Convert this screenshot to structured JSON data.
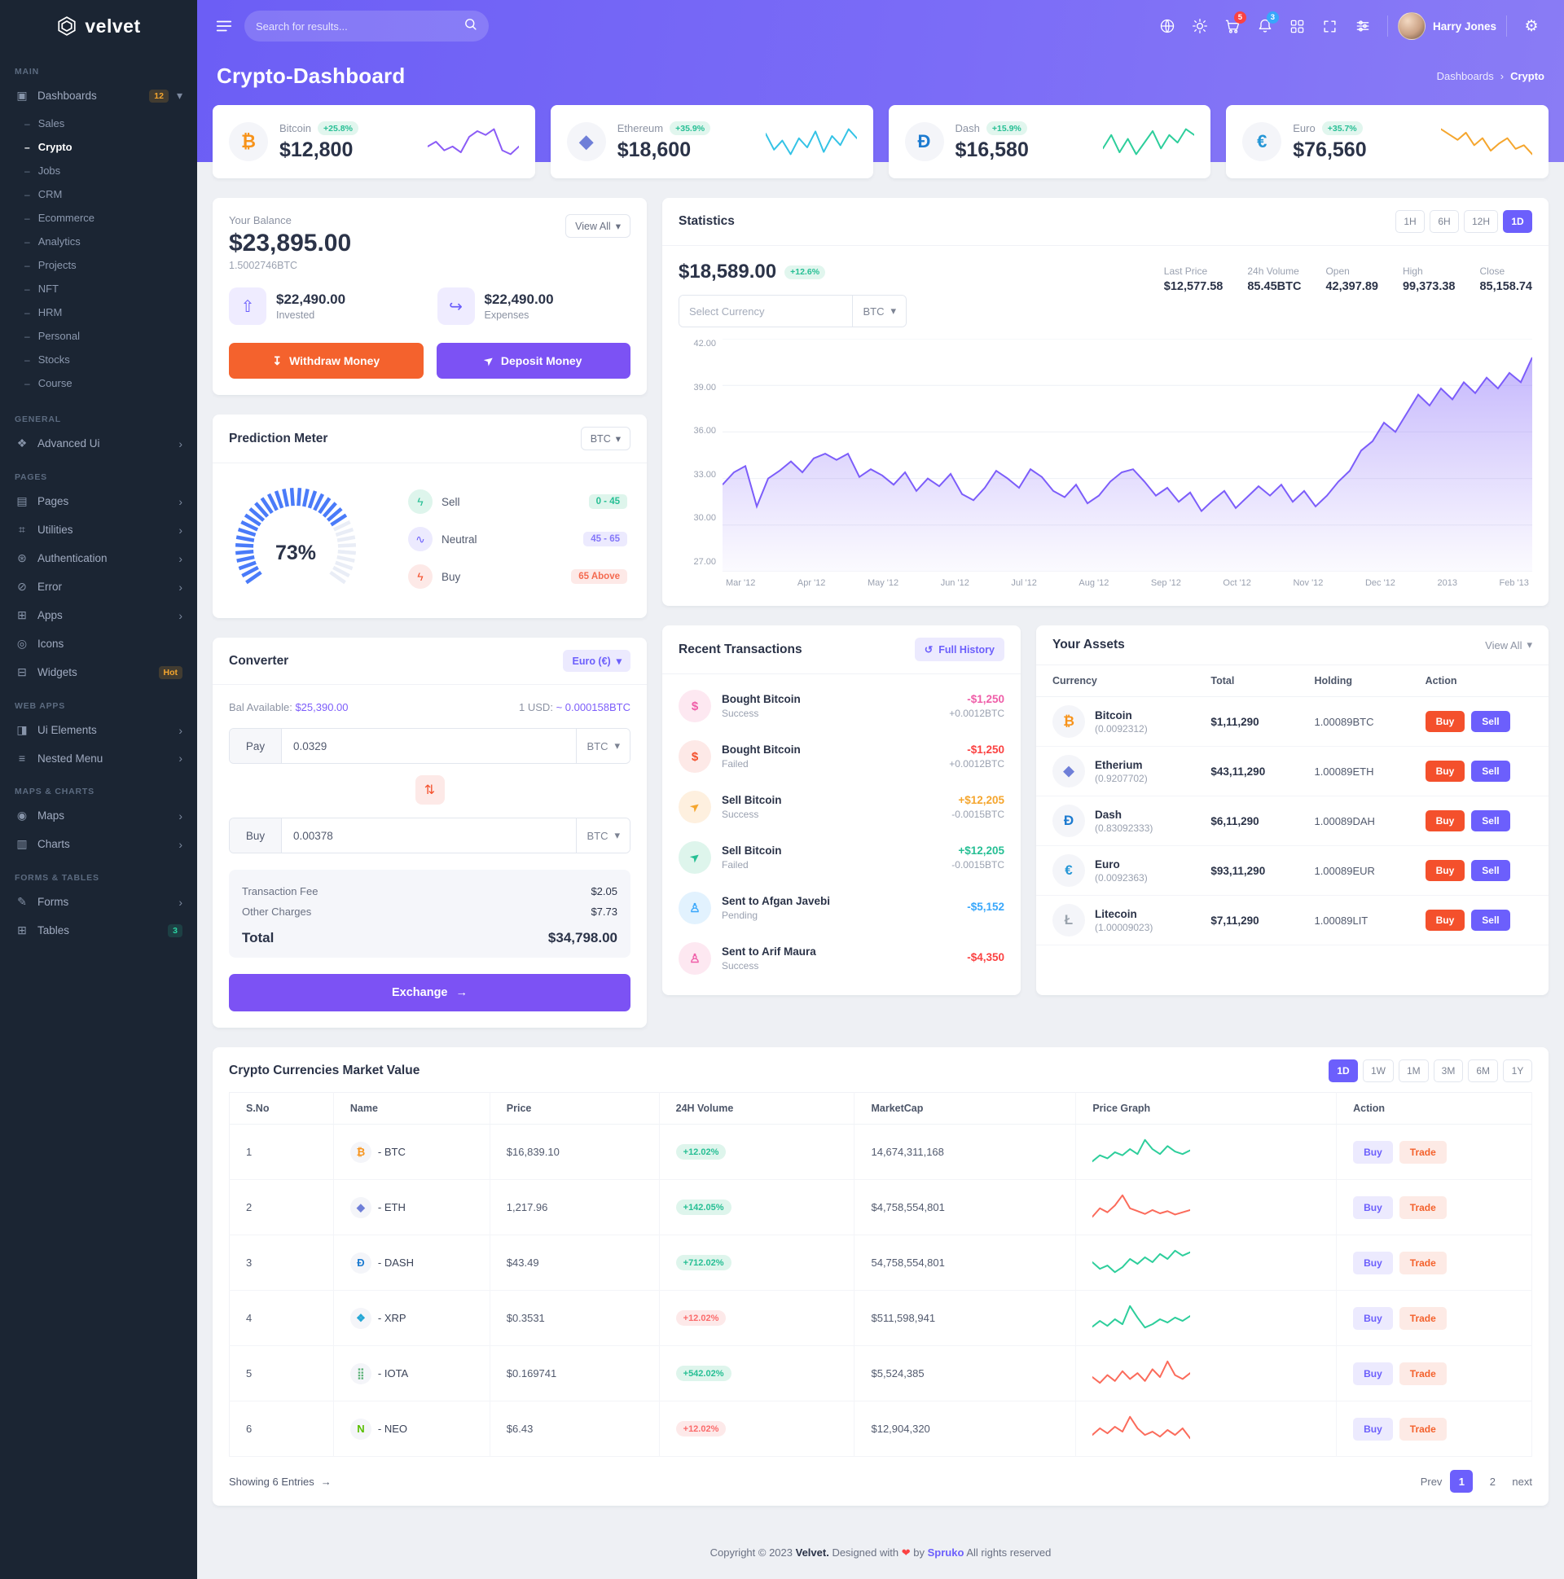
{
  "colors": {
    "primary": "#6c5ffc",
    "orange": "#f4622d",
    "buy_red": "#f4502c",
    "success": "#26bf94",
    "danger": "#fb4242",
    "warning": "#f5a62e",
    "info": "#38a7fb",
    "sidebar_bg": "#1b2533"
  },
  "brand": {
    "name": "velvet"
  },
  "topbar": {
    "search_placeholder": "Search for results...",
    "cart_badge": "5",
    "bell_badge": "3",
    "user_name": "Harry Jones",
    "gear_glyph": "⚙"
  },
  "banner": {
    "title": "Crypto-Dashboard",
    "breadcrumb_parent": "Dashboards",
    "breadcrumb_sep": "›",
    "breadcrumb_current": "Crypto"
  },
  "sidebar": {
    "main_label": "MAIN",
    "dashboards": {
      "label": "Dashboards",
      "badge": "12",
      "glyph": "▣",
      "chevron": "▾"
    },
    "dashboard_children": [
      {
        "label": "Sales",
        "active": "false"
      },
      {
        "label": "Crypto",
        "active": "true"
      },
      {
        "label": "Jobs",
        "active": "false"
      },
      {
        "label": "CRM",
        "active": "false"
      },
      {
        "label": "Ecommerce",
        "active": "false"
      },
      {
        "label": "Analytics",
        "active": "false"
      },
      {
        "label": "Projects",
        "active": "false"
      },
      {
        "label": "NFT",
        "active": "false"
      },
      {
        "label": "HRM",
        "active": "false"
      },
      {
        "label": "Personal",
        "active": "false"
      },
      {
        "label": "Stocks",
        "active": "false"
      },
      {
        "label": "Course",
        "active": "false"
      }
    ],
    "general_label": "GENERAL",
    "general_items": [
      {
        "label": "Advanced Ui",
        "glyph": "❖",
        "chevron": "›",
        "badge": ""
      }
    ],
    "pages_label": "PAGES",
    "pages_items": [
      {
        "label": "Pages",
        "glyph": "▤",
        "chevron": "›",
        "badge": ""
      },
      {
        "label": "Utilities",
        "glyph": "⌗",
        "chevron": "›",
        "badge": ""
      },
      {
        "label": "Authentication",
        "glyph": "⊛",
        "chevron": "›",
        "badge": ""
      },
      {
        "label": "Error",
        "glyph": "⊘",
        "chevron": "›",
        "badge": ""
      },
      {
        "label": "Apps",
        "glyph": "⊞",
        "chevron": "›",
        "badge": ""
      },
      {
        "label": "Icons",
        "glyph": "◎",
        "chevron": "",
        "badge": ""
      },
      {
        "label": "Widgets",
        "glyph": "⊟",
        "chevron": "",
        "badge": "Hot",
        "badge_tone": "orange"
      }
    ],
    "webapps_label": "WEB APPS",
    "webapps_items": [
      {
        "label": "Ui Elements",
        "glyph": "◨",
        "chevron": "›",
        "badge": ""
      },
      {
        "label": "Nested Menu",
        "glyph": "≡",
        "chevron": "›",
        "badge": ""
      }
    ],
    "maps_label": "MAPS & CHARTS",
    "maps_items": [
      {
        "label": "Maps",
        "glyph": "◉",
        "chevron": "›",
        "badge": ""
      },
      {
        "label": "Charts",
        "glyph": "▥",
        "chevron": "›",
        "badge": ""
      }
    ],
    "forms_label": "FORMS & TABLES",
    "forms_items": [
      {
        "label": "Forms",
        "glyph": "✎",
        "chevron": "›",
        "badge": ""
      },
      {
        "label": "Tables",
        "glyph": "⊞",
        "chevron": "",
        "badge": "3",
        "badge_tone": "green"
      }
    ]
  },
  "stat_cards": [
    {
      "name": "Bitcoin",
      "symbol": "₿",
      "symbol_style": "color:#f7931a",
      "badge": "+25.8%",
      "value": "$12,800",
      "spark_color": "#8b5cf6",
      "spark": "5,5.5,4.6,5,4.4,6,6.6,6.2,6.8,4.6,4.2,5"
    },
    {
      "name": "Ethereum",
      "symbol": "◆",
      "symbol_style": "color:#6f7fd8",
      "badge": "+35.9%",
      "value": "$18,600",
      "spark_color": "#34c3e6",
      "spark": "6,4.6,5.4,4.2,5.6,4.8,6.2,4.4,5.8,5,6.4,5.6"
    },
    {
      "name": "Dash",
      "symbol": "Đ",
      "symbol_style": "color:#1d7bd0",
      "badge": "+15.9%",
      "value": "$16,580",
      "spark_color": "#2dce9b",
      "spark": "4.6,6,4.2,5.6,4,5.2,6.4,4.6,6,5.2,6.6,6"
    },
    {
      "name": "Euro",
      "symbol": "€",
      "symbol_style": "color:#2596d6",
      "badge": "+35.7%",
      "value": "$76,560",
      "spark_color": "#f5a62e",
      "spark": "6.6,6,5.4,6.2,4.8,5.6,4.2,5,5.6,4.4,4.8,3.8"
    }
  ],
  "balance": {
    "title": "Your Balance",
    "view_all": "View All",
    "chevron": "▾",
    "amount": "$23,895.00",
    "btc": "1.5002746BTC",
    "tiles": [
      {
        "glyph": "⇧",
        "amount": "$22,490.00",
        "label": "Invested"
      },
      {
        "glyph": "↪",
        "amount": "$22,490.00",
        "label": "Expenses"
      }
    ],
    "withdraw": "Withdraw Money",
    "withdraw_glyph": "↧",
    "deposit": "Deposit Money",
    "deposit_glyph": "➤"
  },
  "statistics": {
    "title": "Statistics",
    "ranges": [
      {
        "label": "1H",
        "active": "false"
      },
      {
        "label": "6H",
        "active": "false"
      },
      {
        "label": "12H",
        "active": "false"
      },
      {
        "label": "1D",
        "active": "true"
      }
    ],
    "price": "$18,589.00",
    "change_badge": "+12.6%",
    "currency_placeholder": "Select Currency",
    "currency_select": "BTC",
    "select_arrow": "▾",
    "stats": [
      {
        "label": "Last Price",
        "value": "$12,577.58"
      },
      {
        "label": "24h Volume",
        "value": "85.45BTC"
      },
      {
        "label": "Open",
        "value": "42,397.89"
      },
      {
        "label": "High",
        "value": "99,373.38"
      },
      {
        "label": "Close",
        "value": "85,158.74"
      }
    ],
    "chart": {
      "type": "area",
      "line_color": "#7c5dfa",
      "ymin": 27,
      "ymax": 42,
      "ylabels": [
        "42.00",
        "39.00",
        "36.00",
        "33.00",
        "30.00",
        "27.00"
      ],
      "xlabels": [
        "Mar '12",
        "Apr '12",
        "May '12",
        "Jun '12",
        "Jul '12",
        "Aug '12",
        "Sep '12",
        "Oct '12",
        "Nov '12",
        "Dec '12",
        "2013",
        "Feb '13"
      ],
      "values": [
        32.6,
        33.4,
        33.8,
        31.2,
        33.0,
        33.5,
        34.1,
        33.4,
        34.3,
        34.6,
        34.2,
        34.6,
        33.1,
        33.6,
        33.2,
        32.6,
        33.4,
        32.2,
        33.0,
        32.5,
        33.3,
        32.0,
        31.6,
        32.4,
        33.5,
        33.0,
        32.4,
        33.6,
        33.1,
        32.2,
        31.8,
        32.6,
        31.4,
        31.9,
        32.8,
        33.4,
        33.6,
        32.8,
        31.9,
        32.4,
        31.5,
        32.1,
        30.9,
        31.6,
        32.2,
        31.1,
        31.8,
        32.5,
        31.9,
        32.6,
        31.5,
        32.2,
        31.2,
        31.9,
        32.8,
        33.5,
        34.8,
        35.4,
        36.6,
        36.0,
        37.2,
        38.4,
        37.7,
        38.8,
        38.1,
        39.2,
        38.5,
        39.5,
        38.8,
        39.8,
        39.2,
        40.8
      ]
    }
  },
  "prediction": {
    "title": "Prediction Meter",
    "select": "BTC",
    "select_arrow": "▾",
    "percent": 73,
    "percent_label": "73%",
    "legend": [
      {
        "label": "Sell",
        "glyph": "ϟ",
        "range": "0 - 45",
        "tone": "green"
      },
      {
        "label": "Neutral",
        "glyph": "∿",
        "range": "45 - 65",
        "tone": "purple"
      },
      {
        "label": "Buy",
        "glyph": "ϟ",
        "range": "65 Above",
        "tone": "red"
      }
    ]
  },
  "converter": {
    "title": "Converter",
    "currency_pill": "Euro (€)",
    "pill_arrow": "▾",
    "bal_label": "Bal Available:",
    "bal_value": "$25,390.00",
    "rate_label": "1 USD:",
    "rate_value": "~ 0.000158BTC",
    "pay_label": "Pay",
    "pay_value": "0.0329",
    "pay_select": "BTC",
    "swap_glyph": "⇅",
    "buy_label": "Buy",
    "buy_value": "0.00378",
    "buy_select": "BTC",
    "fee_label": "Transaction Fee",
    "fee_value": "$2.05",
    "charges_label": "Other Charges",
    "charges_value": "$7.73",
    "total_label": "Total",
    "total_value": "$34,798.00",
    "exchange_label": "Exchange",
    "exchange_arrow": "→"
  },
  "transactions": {
    "title": "Recent Transactions",
    "full_history": "Full History",
    "history_glyph": "↺",
    "items": [
      {
        "title": "Bought Bitcoin",
        "status": "Success",
        "amount": "-$1,250",
        "sub": "+0.0012BTC",
        "glyph": "$",
        "icon": "dollar",
        "icon_tone": "pink",
        "amount_tone": "pink"
      },
      {
        "title": "Bought Bitcoin",
        "status": "Failed",
        "amount": "-$1,250",
        "sub": "+0.0012BTC",
        "glyph": "$",
        "icon": "dollar",
        "icon_tone": "red",
        "amount_tone": "red"
      },
      {
        "title": "Sell Bitcoin",
        "status": "Success",
        "amount": "+$12,205",
        "sub": "-0.0015BTC",
        "glyph": "➤",
        "icon": "send",
        "icon_tone": "orange",
        "amount_tone": "orange"
      },
      {
        "title": "Sell Bitcoin",
        "status": "Failed",
        "amount": "+$12,205",
        "sub": "-0.0015BTC",
        "glyph": "➤",
        "icon": "send",
        "icon_tone": "green",
        "amount_tone": "green"
      },
      {
        "title": "Sent to Afgan Javebi",
        "status": "Pending",
        "amount": "-$5,152",
        "sub": "",
        "glyph": "♙",
        "icon": "person",
        "icon_tone": "blue",
        "amount_tone": "blue"
      },
      {
        "title": "Sent to Arif Maura",
        "status": "Success",
        "amount": "-$4,350",
        "sub": "",
        "glyph": "♙",
        "icon": "person",
        "icon_tone": "pink",
        "amount_tone": "red"
      }
    ]
  },
  "assets": {
    "title": "Your Assets",
    "view_all": "View All",
    "chevron": "▾",
    "columns": {
      "currency": "Currency",
      "total": "Total",
      "holding": "Holding",
      "action": "Action"
    },
    "buy_label": "Buy",
    "sell_label": "Sell",
    "rows": [
      {
        "name": "Bitcoin",
        "sub": "(0.0092312)",
        "total": "$1,11,290",
        "holding": "1.00089BTC",
        "symbol": "₿",
        "symbol_style": "color:#f7931a"
      },
      {
        "name": "Etherium",
        "sub": "(0.9207702)",
        "total": "$43,11,290",
        "holding": "1.00089ETH",
        "symbol": "◆",
        "symbol_style": "color:#6f7fd8"
      },
      {
        "name": "Dash",
        "sub": "(0.83092333)",
        "total": "$6,11,290",
        "holding": "1.00089DAH",
        "symbol": "Đ",
        "symbol_style": "color:#1d7bd0"
      },
      {
        "name": "Euro",
        "sub": "(0.0092363)",
        "total": "$93,11,290",
        "holding": "1.00089EUR",
        "symbol": "€",
        "symbol_style": "color:#2596d6"
      },
      {
        "name": "Litecoin",
        "sub": "(1.00009023)",
        "total": "$7,11,290",
        "holding": "1.00089LIT",
        "symbol": "Ł",
        "symbol_style": "color:#9aa3ad"
      }
    ]
  },
  "market": {
    "title": "Crypto Currencies Market Value",
    "ranges": [
      {
        "label": "1D",
        "active": "true"
      },
      {
        "label": "1W",
        "active": "false"
      },
      {
        "label": "1M",
        "active": "false"
      },
      {
        "label": "3M",
        "active": "false"
      },
      {
        "label": "6M",
        "active": "false"
      },
      {
        "label": "1Y",
        "active": "false"
      }
    ],
    "columns": {
      "sno": "S.No",
      "name": "Name",
      "price": "Price",
      "volume": "24H Volume",
      "marketcap": "MarketCap",
      "graph": "Price Graph",
      "action": "Action"
    },
    "buy_label": "Buy",
    "trade_label": "Trade",
    "rows": [
      {
        "sno": "1",
        "name": "- BTC",
        "symbol": "₿",
        "symbol_style": "color:#f7931a",
        "price": "$16,839.10",
        "volume": "+12.02%",
        "volume_tone": "green",
        "marketcap": "14,674,311,168",
        "spark_color": "#2dce9b",
        "spark": "3,4,3.5,4.5,4,5,4.2,6.5,5,4.2,5.5,4.6,4.2,4.8"
      },
      {
        "sno": "2",
        "name": "- ETH",
        "symbol": "◆",
        "symbol_style": "color:#6f7fd8",
        "price": "1,217.96",
        "volume": "+142.05%",
        "volume_tone": "green",
        "marketcap": "$4,758,554,801",
        "spark_color": "#fb6b5b",
        "spark": "3,4.5,3.8,5,6.8,4.5,4,3.5,4.2,3.6,4,3.4,3.8,4.2"
      },
      {
        "sno": "3",
        "name": "- DASH",
        "symbol": "Đ",
        "symbol_style": "color:#1d7bd0",
        "price": "$43.49",
        "volume": "+712.02%",
        "volume_tone": "green",
        "marketcap": "54,758,554,801",
        "spark_color": "#2dce9b",
        "spark": "4,3.2,3.6,2.8,3.4,4.4,3.8,4.6,4,5,4.4,5.4,4.8,5.2"
      },
      {
        "sno": "4",
        "name": "- XRP",
        "symbol": "❖",
        "symbol_style": "color:#23a6d5",
        "price": "$0.3531",
        "volume": "+12.02%",
        "volume_tone": "red",
        "marketcap": "$511,598,941",
        "spark_color": "#2dce9b",
        "spark": "3.5,4.2,3.6,4.4,3.8,6,4.6,3.4,3.8,4.4,4,4.6,4.2,4.8"
      },
      {
        "sno": "5",
        "name": "- IOTA",
        "symbol": "⣿",
        "symbol_style": "color:#5fb37a",
        "price": "$0.169741",
        "volume": "+542.02%",
        "volume_tone": "green",
        "marketcap": "$5,524,385",
        "spark_color": "#fb6b5b",
        "spark": "4,3.4,4.2,3.6,4.6,3.8,4.4,3.6,4.8,4,5.6,4.2,3.8,4.4"
      },
      {
        "sno": "6",
        "name": "- NEO",
        "symbol": "N",
        "symbol_style": "color:#58bf00",
        "price": "$6.43",
        "volume": "+12.02%",
        "volume_tone": "red",
        "marketcap": "$12,904,320",
        "spark_color": "#fb6b5b",
        "spark": "3.6,4.4,3.8,4.6,4,5.8,4.4,3.6,4,3.4,4.2,3.6,4.4,3.2"
      }
    ],
    "showing": "Showing 6 Entries",
    "showing_arrow": "→",
    "prev": "Prev",
    "page1": "1",
    "page2": "2",
    "next": "next"
  },
  "footer": {
    "copyright": "Copyright © 2023",
    "brand": "Velvet.",
    "designed": "Designed with",
    "heart": "❤",
    "by": "by",
    "spruko": "Spruko",
    "rights": "All rights reserved"
  }
}
